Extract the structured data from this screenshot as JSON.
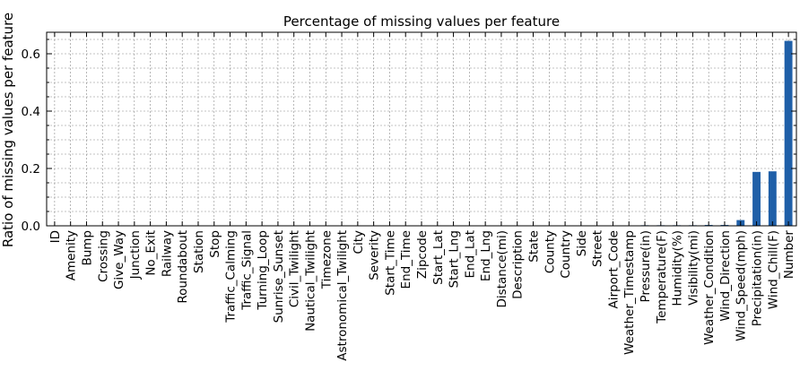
{
  "chart_data": {
    "type": "bar",
    "title": "Percentage of missing values per feature",
    "xlabel": "",
    "ylabel": "Ratio of missing values per feature",
    "ylim": [
      0,
      0.675
    ],
    "yticks": [
      "0.0",
      "0.2",
      "0.4",
      "0.6"
    ],
    "grid": true,
    "bar_color": "#1f5fa8",
    "categories": [
      "ID",
      "Amenity",
      "Bump",
      "Crossing",
      "Give_Way",
      "Junction",
      "No_Exit",
      "Railway",
      "Roundabout",
      "Station",
      "Stop",
      "Traffic_Calming",
      "Traffic_Signal",
      "Turning_Loop",
      "Sunrise_Sunset",
      "Civil_Twilight",
      "Nautical_Twilight",
      "Timezone",
      "Astronomical_Twilight",
      "City",
      "Severity",
      "Start_Time",
      "End_Time",
      "Zipcode",
      "Start_Lat",
      "Start_Lng",
      "End_Lat",
      "End_Lng",
      "Distance(mi)",
      "Description",
      "State",
      "County",
      "Country",
      "Side",
      "Street",
      "Airport_Code",
      "Weather_Timestamp",
      "Pressure(in)",
      "Temperature(F)",
      "Humidity(%)",
      "Visibility(mi)",
      "Weather_Condition",
      "Wind_Direction",
      "Wind_Speed(mph)",
      "Precipitation(in)",
      "Wind_Chill(F)",
      "Number"
    ],
    "values": [
      0,
      0,
      0,
      0,
      0,
      0,
      0,
      0,
      0,
      0,
      0,
      0,
      0,
      0,
      0,
      0,
      0,
      0,
      0,
      0,
      0,
      0,
      0,
      0,
      0,
      0,
      0,
      0,
      0,
      0,
      0,
      0,
      0,
      0,
      0,
      0.001,
      0.001,
      0.002,
      0.002,
      0.002,
      0.002,
      0.003,
      0.003,
      0.02,
      0.188,
      0.19,
      0.645
    ]
  }
}
